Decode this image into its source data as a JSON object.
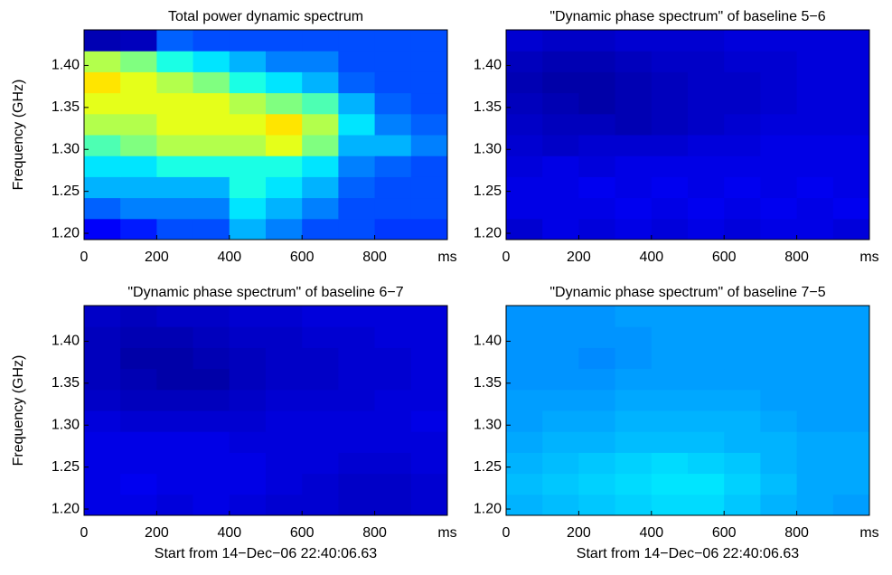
{
  "chart_data": [
    {
      "type": "heatmap",
      "title": "Total power dynamic spectrum",
      "ylabel": "Frequency (GHz)",
      "colormap": "jet",
      "clim": [
        0,
        1
      ],
      "xbins": [
        0,
        100,
        200,
        300,
        400,
        500,
        600,
        700,
        800,
        900,
        1000
      ],
      "ybins": [
        1.1925,
        1.2175,
        1.2425,
        1.2675,
        1.2925,
        1.3175,
        1.3425,
        1.3675,
        1.3925,
        1.4175,
        1.4425
      ],
      "xlim": [
        0,
        1000
      ],
      "ylim": [
        1.1925,
        1.4425
      ],
      "xticks": [
        0,
        200,
        400,
        600,
        800,
        {
          "value": 1000,
          "label": "ms"
        }
      ],
      "yticks": [
        {
          "value": 1.2,
          "label": "1.20"
        },
        {
          "value": 1.25,
          "label": "1.25"
        },
        {
          "value": 1.3,
          "label": "1.30"
        },
        {
          "value": 1.35,
          "label": "1.35"
        },
        {
          "value": 1.4,
          "label": "1.40"
        }
      ],
      "values": [
        [
          0.12,
          0.15,
          0.2,
          0.2,
          0.3,
          0.25,
          0.2,
          0.2,
          0.18,
          0.18
        ],
        [
          0.22,
          0.25,
          0.25,
          0.25,
          0.35,
          0.3,
          0.25,
          0.2,
          0.2,
          0.2
        ],
        [
          0.3,
          0.3,
          0.3,
          0.3,
          0.4,
          0.35,
          0.3,
          0.22,
          0.2,
          0.2
        ],
        [
          0.35,
          0.35,
          0.4,
          0.4,
          0.4,
          0.4,
          0.35,
          0.25,
          0.22,
          0.2
        ],
        [
          0.45,
          0.5,
          0.55,
          0.55,
          0.55,
          0.6,
          0.5,
          0.3,
          0.3,
          0.25
        ],
        [
          0.55,
          0.55,
          0.6,
          0.6,
          0.6,
          0.65,
          0.55,
          0.35,
          0.25,
          0.22
        ],
        [
          0.6,
          0.6,
          0.6,
          0.6,
          0.55,
          0.5,
          0.45,
          0.3,
          0.22,
          0.2
        ],
        [
          0.65,
          0.6,
          0.55,
          0.5,
          0.4,
          0.35,
          0.3,
          0.22,
          0.2,
          0.2
        ],
        [
          0.55,
          0.5,
          0.4,
          0.35,
          0.3,
          0.25,
          0.25,
          0.2,
          0.2,
          0.2
        ],
        [
          0.05,
          0.06,
          0.22,
          0.2,
          0.2,
          0.2,
          0.2,
          0.2,
          0.2,
          0.2
        ]
      ]
    },
    {
      "type": "heatmap",
      "title": "\"Dynamic phase spectrum\" of baseline 5−6",
      "colormap": "jet",
      "clim": [
        0,
        1
      ],
      "xbins": [
        0,
        100,
        200,
        300,
        400,
        500,
        600,
        700,
        800,
        900,
        1000
      ],
      "ybins": [
        1.1925,
        1.2175,
        1.2425,
        1.2675,
        1.2925,
        1.3175,
        1.3425,
        1.3675,
        1.3925,
        1.4175,
        1.4425
      ],
      "xlim": [
        0,
        1000
      ],
      "ylim": [
        1.1925,
        1.4425
      ],
      "xticks": [
        0,
        200,
        400,
        600,
        800,
        {
          "value": 1000,
          "label": "ms"
        }
      ],
      "yticks": [
        {
          "value": 1.2,
          "label": "1.20"
        },
        {
          "value": 1.25,
          "label": "1.25"
        },
        {
          "value": 1.3,
          "label": "1.30"
        },
        {
          "value": 1.35,
          "label": "1.35"
        },
        {
          "value": 1.4,
          "label": "1.40"
        }
      ],
      "values": [
        [
          0.08,
          0.1,
          0.09,
          0.1,
          0.09,
          0.1,
          0.09,
          0.1,
          0.1,
          0.09
        ],
        [
          0.1,
          0.1,
          0.1,
          0.11,
          0.1,
          0.11,
          0.1,
          0.11,
          0.1,
          0.11
        ],
        [
          0.1,
          0.1,
          0.11,
          0.1,
          0.11,
          0.1,
          0.11,
          0.1,
          0.11,
          0.1
        ],
        [
          0.09,
          0.1,
          0.09,
          0.1,
          0.1,
          0.1,
          0.1,
          0.1,
          0.1,
          0.1
        ],
        [
          0.08,
          0.07,
          0.08,
          0.08,
          0.08,
          0.09,
          0.09,
          0.1,
          0.1,
          0.1
        ],
        [
          0.07,
          0.06,
          0.06,
          0.05,
          0.06,
          0.07,
          0.08,
          0.09,
          0.09,
          0.09
        ],
        [
          0.06,
          0.05,
          0.04,
          0.05,
          0.06,
          0.07,
          0.07,
          0.08,
          0.09,
          0.09
        ],
        [
          0.05,
          0.04,
          0.04,
          0.05,
          0.06,
          0.07,
          0.07,
          0.08,
          0.09,
          0.09
        ],
        [
          0.06,
          0.05,
          0.05,
          0.06,
          0.07,
          0.07,
          0.08,
          0.08,
          0.09,
          0.09
        ],
        [
          0.08,
          0.07,
          0.07,
          0.08,
          0.08,
          0.08,
          0.09,
          0.09,
          0.09,
          0.09
        ]
      ]
    },
    {
      "type": "heatmap",
      "title": "\"Dynamic phase spectrum\" of baseline 6−7",
      "ylabel": "Frequency (GHz)",
      "xlabel": "Start from 14−Dec−06 22:40:06.63",
      "colormap": "jet",
      "clim": [
        0,
        1
      ],
      "xbins": [
        0,
        100,
        200,
        300,
        400,
        500,
        600,
        700,
        800,
        900,
        1000
      ],
      "ybins": [
        1.1925,
        1.2175,
        1.2425,
        1.2675,
        1.2925,
        1.3175,
        1.3425,
        1.3675,
        1.3925,
        1.4175,
        1.4425
      ],
      "xlim": [
        0,
        1000
      ],
      "ylim": [
        1.1925,
        1.4425
      ],
      "xticks": [
        0,
        200,
        400,
        600,
        800,
        {
          "value": 1000,
          "label": "ms"
        }
      ],
      "yticks": [
        {
          "value": 1.2,
          "label": "1.20"
        },
        {
          "value": 1.25,
          "label": "1.25"
        },
        {
          "value": 1.3,
          "label": "1.30"
        },
        {
          "value": 1.35,
          "label": "1.35"
        },
        {
          "value": 1.4,
          "label": "1.40"
        }
      ],
      "values": [
        [
          0.1,
          0.1,
          0.09,
          0.1,
          0.09,
          0.08,
          0.08,
          0.07,
          0.07,
          0.08
        ],
        [
          0.1,
          0.11,
          0.1,
          0.1,
          0.1,
          0.09,
          0.08,
          0.07,
          0.07,
          0.08
        ],
        [
          0.1,
          0.1,
          0.1,
          0.1,
          0.1,
          0.09,
          0.09,
          0.08,
          0.08,
          0.09
        ],
        [
          0.1,
          0.1,
          0.1,
          0.1,
          0.09,
          0.09,
          0.09,
          0.09,
          0.09,
          0.09
        ],
        [
          0.09,
          0.08,
          0.08,
          0.08,
          0.08,
          0.09,
          0.09,
          0.09,
          0.09,
          0.1
        ],
        [
          0.07,
          0.06,
          0.06,
          0.06,
          0.07,
          0.08,
          0.08,
          0.08,
          0.09,
          0.09
        ],
        [
          0.06,
          0.05,
          0.04,
          0.04,
          0.06,
          0.07,
          0.07,
          0.08,
          0.08,
          0.09
        ],
        [
          0.06,
          0.04,
          0.04,
          0.05,
          0.06,
          0.07,
          0.07,
          0.08,
          0.08,
          0.09
        ],
        [
          0.06,
          0.05,
          0.05,
          0.06,
          0.07,
          0.07,
          0.08,
          0.08,
          0.09,
          0.09
        ],
        [
          0.07,
          0.06,
          0.07,
          0.07,
          0.08,
          0.08,
          0.09,
          0.09,
          0.09,
          0.09
        ]
      ]
    },
    {
      "type": "heatmap",
      "title": "\"Dynamic phase spectrum\" of baseline 7−5",
      "xlabel": "Start from 14−Dec−06 22:40:06.63",
      "colormap": "jet",
      "clim": [
        0,
        1
      ],
      "xbins": [
        0,
        100,
        200,
        300,
        400,
        500,
        600,
        700,
        800,
        900,
        1000
      ],
      "ybins": [
        1.1925,
        1.2175,
        1.2425,
        1.2675,
        1.2925,
        1.3175,
        1.3425,
        1.3675,
        1.3925,
        1.4175,
        1.4425
      ],
      "xlim": [
        0,
        1000
      ],
      "ylim": [
        1.1925,
        1.4425
      ],
      "xticks": [
        0,
        200,
        400,
        600,
        800,
        {
          "value": 1000,
          "label": "ms"
        }
      ],
      "yticks": [
        {
          "value": 1.2,
          "label": "1.20"
        },
        {
          "value": 1.25,
          "label": "1.25"
        },
        {
          "value": 1.3,
          "label": "1.30"
        },
        {
          "value": 1.35,
          "label": "1.35"
        },
        {
          "value": 1.4,
          "label": "1.40"
        }
      ],
      "values": [
        [
          0.3,
          0.31,
          0.32,
          0.33,
          0.34,
          0.34,
          0.32,
          0.3,
          0.29,
          0.28
        ],
        [
          0.31,
          0.32,
          0.33,
          0.34,
          0.35,
          0.35,
          0.33,
          0.31,
          0.29,
          0.29
        ],
        [
          0.3,
          0.31,
          0.32,
          0.33,
          0.34,
          0.33,
          0.32,
          0.3,
          0.29,
          0.29
        ],
        [
          0.29,
          0.3,
          0.3,
          0.31,
          0.31,
          0.31,
          0.3,
          0.3,
          0.29,
          0.29
        ],
        [
          0.28,
          0.29,
          0.29,
          0.3,
          0.3,
          0.3,
          0.3,
          0.29,
          0.28,
          0.28
        ],
        [
          0.28,
          0.28,
          0.28,
          0.29,
          0.29,
          0.29,
          0.29,
          0.28,
          0.28,
          0.28
        ],
        [
          0.27,
          0.27,
          0.27,
          0.28,
          0.28,
          0.28,
          0.28,
          0.28,
          0.28,
          0.28
        ],
        [
          0.27,
          0.27,
          0.26,
          0.27,
          0.28,
          0.28,
          0.28,
          0.28,
          0.28,
          0.28
        ],
        [
          0.27,
          0.27,
          0.27,
          0.27,
          0.28,
          0.28,
          0.28,
          0.28,
          0.28,
          0.28
        ],
        [
          0.27,
          0.27,
          0.27,
          0.28,
          0.28,
          0.28,
          0.28,
          0.28,
          0.28,
          0.28
        ]
      ]
    }
  ]
}
